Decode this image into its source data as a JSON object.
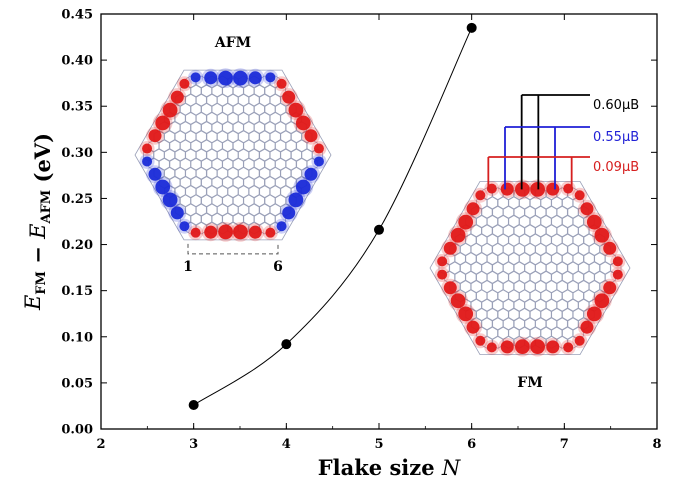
{
  "chart_data": {
    "type": "scatter",
    "xlabel": "Flake size N",
    "ylabel": "E_FM − E_AFM (eV)",
    "xlim": [
      2,
      8
    ],
    "ylim": [
      0,
      0.45
    ],
    "xticks": [
      "2",
      "3",
      "4",
      "5",
      "6",
      "7",
      "8"
    ],
    "yticks": [
      "0.00",
      "0.05",
      "0.10",
      "0.15",
      "0.20",
      "0.25",
      "0.30",
      "0.35",
      "0.40",
      "0.45"
    ],
    "grid": false,
    "series": [
      {
        "x": [
          3,
          4,
          5,
          6
        ],
        "y": [
          0.026,
          0.092,
          0.216,
          0.435
        ],
        "marker": "circle",
        "color": "#000000",
        "line": "smooth"
      }
    ],
    "insets": {
      "afm": {
        "label": "AFM",
        "edge_index_start": "1",
        "edge_index_end": "6"
      },
      "fm": {
        "label": "FM",
        "moments": [
          {
            "value": "0.60μB",
            "color": "#000000"
          },
          {
            "value": "0.55μB",
            "color": "#1f1fd6"
          },
          {
            "value": "0.09μB",
            "color": "#d61f1f"
          }
        ]
      }
    },
    "colors": {
      "spin_up": "#e01818",
      "spin_down": "#1a2bd8",
      "lattice": "#9aa0b8"
    }
  }
}
